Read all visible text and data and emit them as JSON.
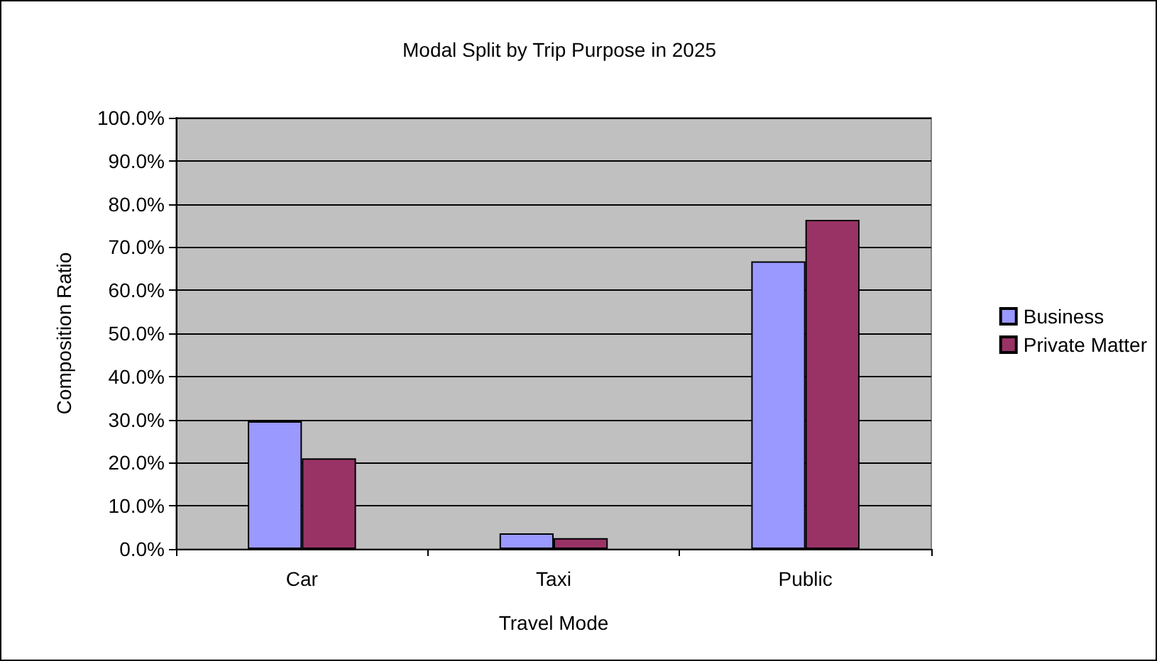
{
  "chart_data": {
    "type": "bar",
    "title": "Modal Split by Trip Purpose in 2025",
    "xlabel": "Travel Mode",
    "ylabel": "Composition Ratio",
    "categories": [
      "Car",
      "Taxi",
      "Public"
    ],
    "series": [
      {
        "name": "Business",
        "color": "#9999ff",
        "values": [
          29.6,
          3.6,
          66.7
        ]
      },
      {
        "name": "Private Matter",
        "color": "#993366",
        "values": [
          21.0,
          2.5,
          76.3
        ]
      }
    ],
    "ylim": [
      0,
      100
    ],
    "yticks": [
      {
        "value": 0,
        "label": "0.0%"
      },
      {
        "value": 10,
        "label": "10.0%"
      },
      {
        "value": 20,
        "label": "20.0%"
      },
      {
        "value": 30,
        "label": "30.0%"
      },
      {
        "value": 40,
        "label": "40.0%"
      },
      {
        "value": 50,
        "label": "50.0%"
      },
      {
        "value": 60,
        "label": "60.0%"
      },
      {
        "value": 70,
        "label": "70.0%"
      },
      {
        "value": 80,
        "label": "80.0%"
      },
      {
        "value": 90,
        "label": "90.0%"
      },
      {
        "value": 100,
        "label": "100.0%"
      }
    ],
    "grid": "y",
    "legend": "right"
  }
}
